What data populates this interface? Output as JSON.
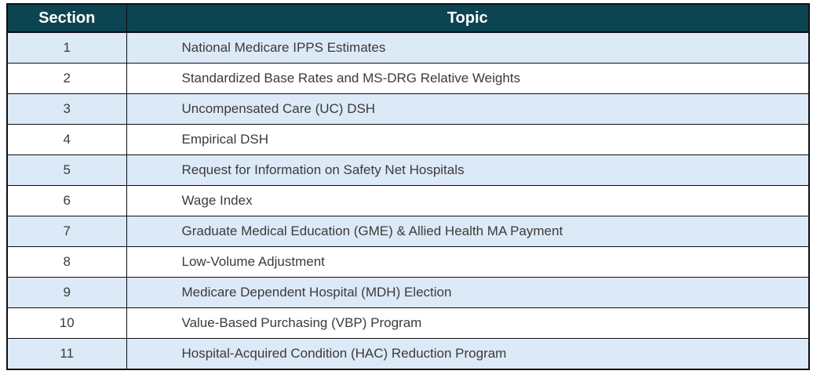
{
  "colors": {
    "header_bg": "#0d4452",
    "header_text": "#ffffff",
    "row_alt_bg": "#dce9f6",
    "row_bg": "#ffffff",
    "border": "#0d0d14",
    "body_text": "#3b3b3b"
  },
  "table": {
    "headers": {
      "section": "Section",
      "topic": "Topic"
    },
    "rows": [
      {
        "section": "1",
        "topic": "National Medicare IPPS Estimates"
      },
      {
        "section": "2",
        "topic": "Standardized Base Rates and MS-DRG Relative Weights"
      },
      {
        "section": "3",
        "topic": "Uncompensated Care (UC) DSH"
      },
      {
        "section": "4",
        "topic": "Empirical DSH"
      },
      {
        "section": "5",
        "topic": "Request for Information on Safety Net Hospitals"
      },
      {
        "section": "6",
        "topic": "Wage Index"
      },
      {
        "section": "7",
        "topic": "Graduate Medical Education (GME) & Allied Health MA Payment"
      },
      {
        "section": "8",
        "topic": "Low-Volume Adjustment"
      },
      {
        "section": "9",
        "topic": "Medicare Dependent Hospital (MDH) Election"
      },
      {
        "section": "10",
        "topic": "Value-Based Purchasing (VBP) Program"
      },
      {
        "section": "11",
        "topic": "Hospital-Acquired Condition (HAC) Reduction Program"
      }
    ]
  }
}
